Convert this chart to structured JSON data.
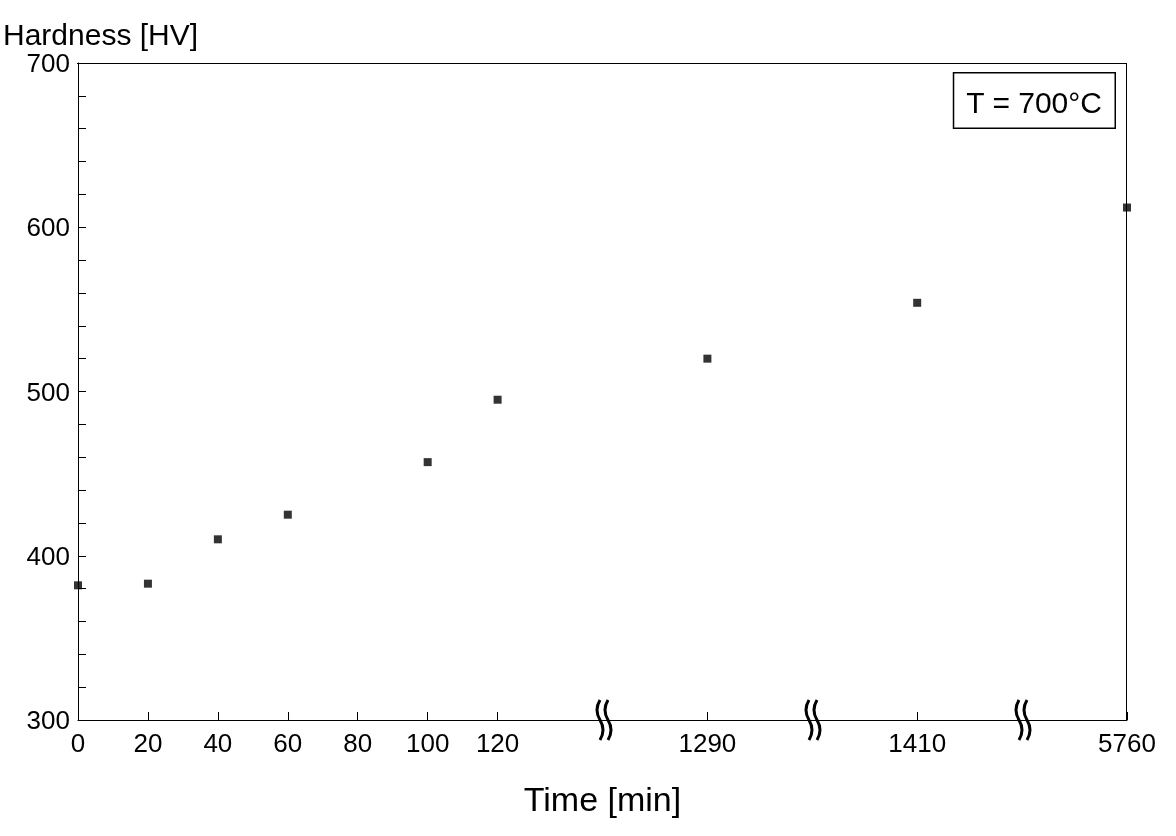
{
  "chart_data": {
    "type": "scatter",
    "ylabel": "Hardness [HV]",
    "xlabel": "Time [min]",
    "categories": [
      "0",
      "20",
      "40",
      "60",
      "80",
      "100",
      "120",
      null,
      null,
      "1290",
      null,
      null,
      "1410",
      null,
      null,
      "5760"
    ],
    "series": [
      {
        "color": "#000000",
        "values": [
          382,
          383,
          410,
          425,
          null,
          457,
          495,
          null,
          null,
          520,
          null,
          null,
          554,
          null,
          null,
          612
        ]
      }
    ],
    "ylim": [
      300,
      700
    ],
    "yticks": [
      300,
      {
        "value": 320,
        "label": null
      },
      {
        "value": 340,
        "label": null
      },
      {
        "value": 360,
        "label": null
      },
      {
        "value": 380,
        "label": null
      },
      400,
      {
        "value": 420,
        "label": null
      },
      {
        "value": 440,
        "label": null
      },
      {
        "value": 460,
        "label": null
      },
      {
        "value": 480,
        "label": null
      },
      500,
      {
        "value": 520,
        "label": null
      },
      {
        "value": 540,
        "label": null
      },
      {
        "value": 560,
        "label": null
      },
      {
        "value": 580,
        "label": null
      },
      600,
      {
        "value": 620,
        "label": null
      },
      {
        "value": 640,
        "label": null
      },
      {
        "value": 660,
        "label": null
      },
      {
        "value": 680,
        "label": null
      },
      700
    ],
    "annotations": [
      "T = 700°C"
    ],
    "marker": "square",
    "grid": false
  }
}
